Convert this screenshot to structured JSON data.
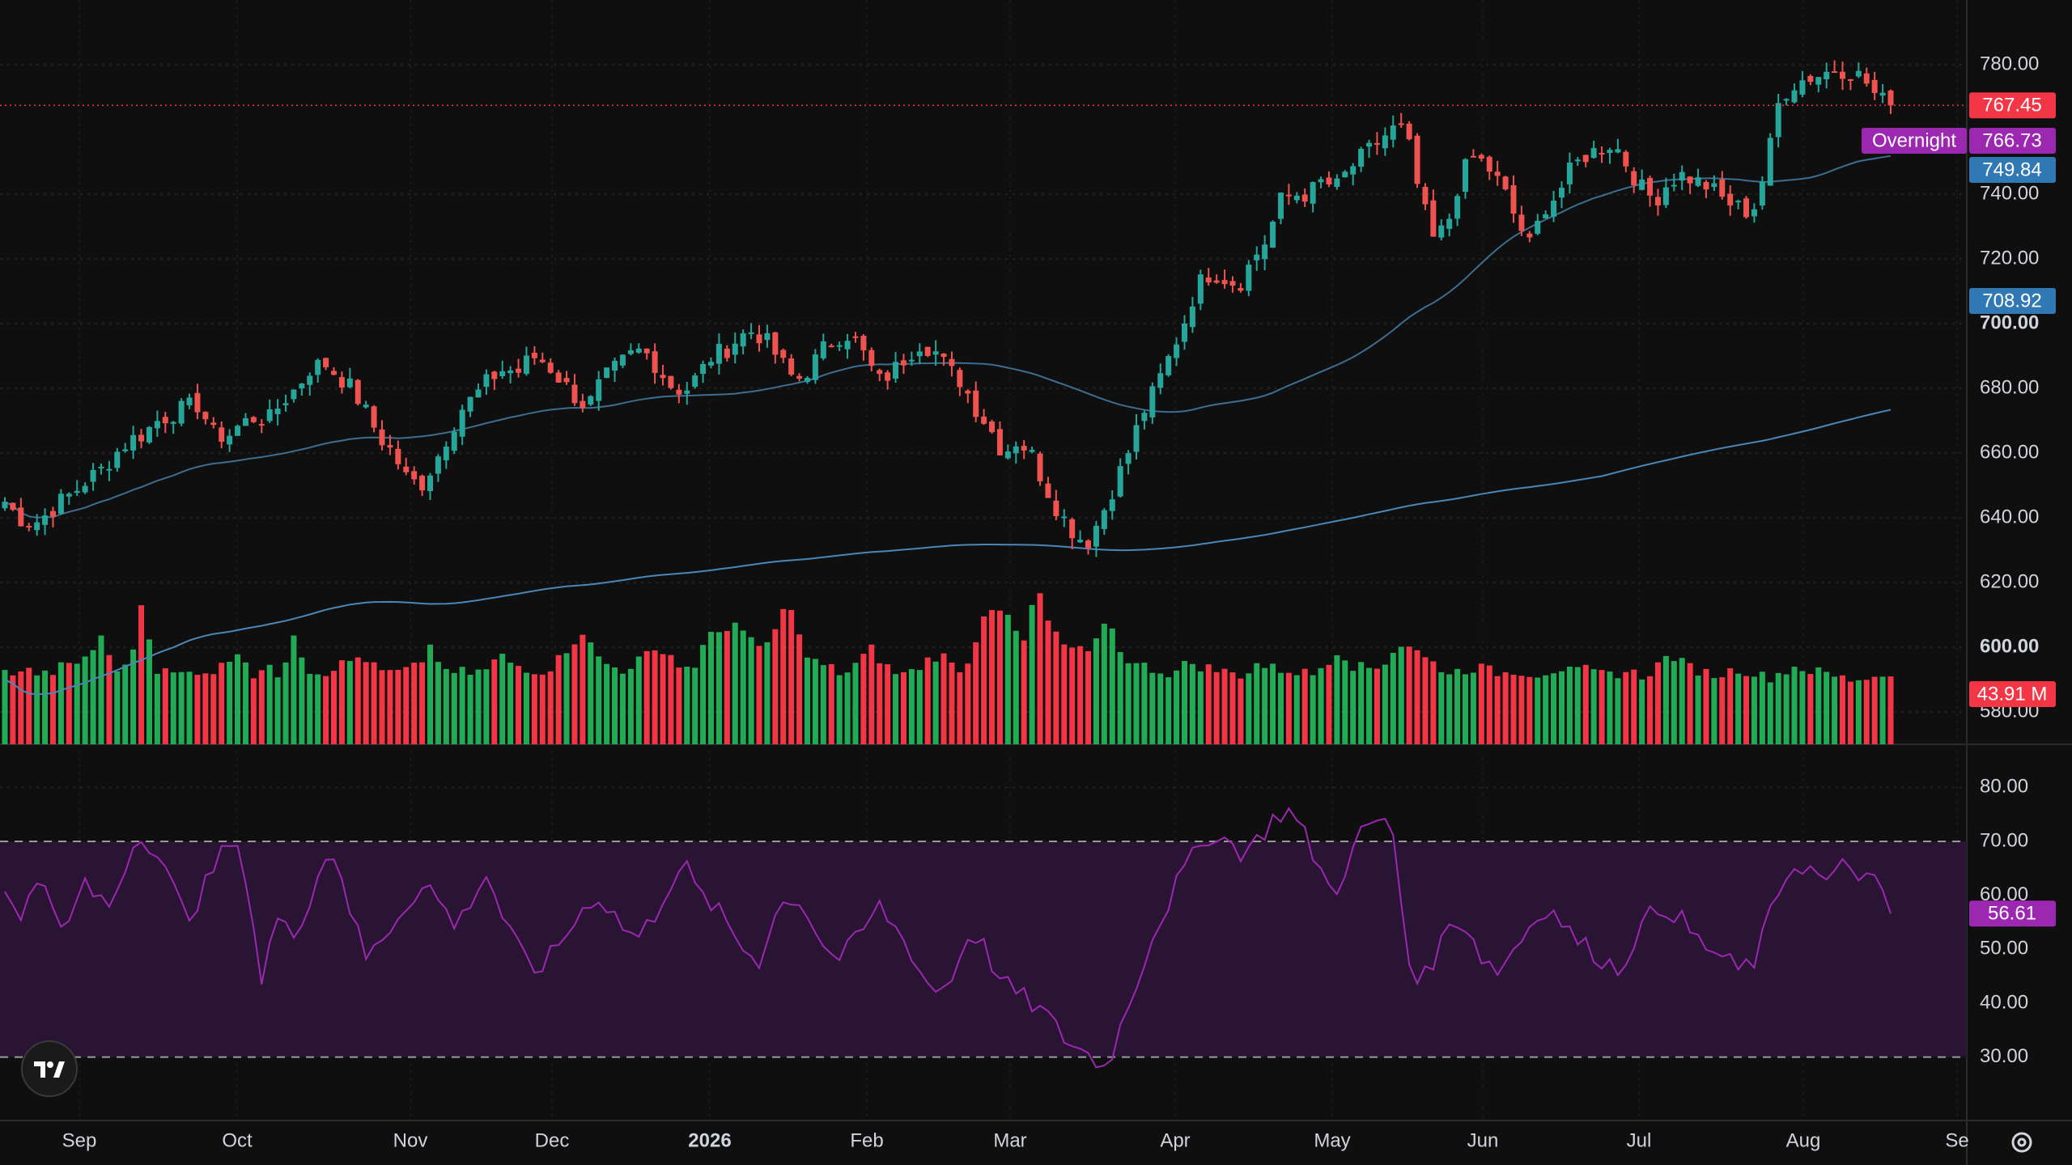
{
  "chart_data": [
    {
      "type": "candlestick",
      "title": "",
      "x_labels": [
        "Sep",
        "Oct",
        "Nov",
        "Dec",
        "2026",
        "Feb",
        "Mar",
        "Apr",
        "May",
        "Jun",
        "Jul",
        "Aug",
        "Se"
      ],
      "y_ticks": [
        "780.00",
        "740.00",
        "720.00",
        "700.00",
        "680.00",
        "660.00",
        "640.00",
        "620.00",
        "600.00",
        "580.00"
      ],
      "ylim": [
        570,
        790
      ],
      "grid": true,
      "price_path": [
        645,
        640,
        638,
        641,
        645,
        648,
        652,
        655,
        660,
        664,
        666,
        670,
        672,
        674,
        675,
        666,
        665,
        669,
        671,
        670,
        676,
        680,
        686,
        688,
        684,
        680,
        673,
        665,
        660,
        652,
        650,
        657,
        666,
        674,
        678,
        683,
        686,
        685,
        690,
        688,
        683,
        678,
        674,
        682,
        686,
        690,
        692,
        687,
        681,
        679,
        684,
        690,
        692,
        696,
        698,
        694,
        688,
        682,
        686,
        692,
        696,
        697,
        690,
        682,
        685,
        690,
        694,
        692,
        686,
        682,
        674,
        668,
        660,
        664,
        660,
        650,
        642,
        636,
        632,
        640,
        650,
        660,
        672,
        680,
        690,
        700,
        712,
        716,
        714,
        712,
        720,
        726,
        738,
        740,
        740,
        744,
        742,
        748,
        752,
        756,
        760,
        760,
        740,
        726,
        730,
        746,
        752,
        748,
        742,
        732,
        724,
        736,
        740,
        748,
        752,
        754,
        756,
        749,
        742,
        738,
        744,
        746,
        744,
        742,
        738,
        736,
        734,
        748,
        770,
        774,
        776,
        777,
        779,
        778,
        776,
        770,
        767.45
      ],
      "ma_fast_label": "749.84",
      "ma_slow_label": "708.92",
      "last_price": "767.45",
      "overnight_label": "Overnight",
      "overnight_price": "766.73",
      "colors": {
        "up": "#26a69a",
        "down": "#ef5350",
        "up_vol": "#22ab55",
        "down_vol": "#f23645",
        "ma_fast": "#2962ff",
        "ma": "#4a87b8",
        "last": "#f23645",
        "overnight": "#9c27b0",
        "ma_badge": "#3179b5"
      }
    },
    {
      "type": "bar",
      "title": "",
      "series_name": "Volume",
      "volume_label": "43.91 M",
      "volume_pattern": [
        88,
        92,
        90,
        85,
        95,
        98,
        110,
        130,
        96,
        92,
        180,
        92,
        88,
        86,
        92,
        90,
        98,
        120,
        86,
        94,
        84,
        140,
        92,
        88,
        96,
        102,
        110,
        92,
        88,
        90,
        96,
        124,
        86,
        90,
        88,
        92,
        110,
        98,
        94,
        90,
        100,
        122,
        140,
        108,
        96,
        92,
        104,
        112,
        120,
        96,
        94,
        130,
        140,
        152,
        128,
        118,
        140,
        182,
        112,
        100,
        94,
        86,
        102,
        118,
        96,
        86,
        90,
        104,
        112,
        94,
        98,
        160,
        176,
        150,
        124,
        196,
        140,
        122,
        116,
        110,
        160,
        118,
        98,
        96,
        90,
        88,
        102,
        96,
        92,
        88,
        86,
        100,
        94,
        92,
        90,
        86,
        102,
        118,
        96,
        94,
        96,
        120,
        124,
        108,
        98,
        88,
        92,
        96,
        90,
        88,
        92,
        86,
        90,
        94,
        88,
        92,
        86,
        88,
        90,
        84,
        96,
        112,
        98,
        92,
        86,
        88,
        94,
        88,
        82,
        88,
        96,
        92,
        88,
        84,
        80,
        82,
        84,
        90
      ]
    },
    {
      "type": "line",
      "title": "",
      "series_name": "RSI",
      "y_ticks": [
        "80.00",
        "70.00",
        "60.00",
        "50.00",
        "40.00",
        "30.00"
      ],
      "ylim": [
        25,
        85
      ],
      "upper_band": 70,
      "lower_band": 30,
      "rsi_label": "56.61",
      "rsi_path": [
        60,
        55,
        65,
        58,
        52,
        62,
        60,
        58,
        66,
        72,
        68,
        62,
        56,
        60,
        66,
        70,
        64,
        44,
        56,
        52,
        58,
        66,
        68,
        56,
        48,
        52,
        56,
        60,
        62,
        58,
        54,
        60,
        64,
        56,
        50,
        46,
        48,
        52,
        56,
        60,
        58,
        54,
        52,
        56,
        62,
        66,
        60,
        58,
        54,
        50,
        48,
        56,
        60,
        58,
        52,
        48,
        50,
        54,
        58,
        54,
        50,
        44,
        42,
        46,
        54,
        50,
        44,
        42,
        40,
        38,
        34,
        32,
        30,
        28,
        36,
        44,
        52,
        58,
        64,
        68,
        72,
        70,
        68,
        70,
        74,
        76,
        72,
        66,
        60,
        66,
        72,
        74,
        72,
        48,
        44,
        50,
        56,
        54,
        48,
        46,
        50,
        54,
        58,
        56,
        52,
        50,
        48,
        46,
        52,
        56,
        58,
        56,
        52,
        50,
        48,
        46,
        48,
        56,
        64,
        66,
        64,
        62,
        66,
        64,
        62,
        56.61
      ],
      "colors": {
        "line": "#9c27b0",
        "band": "#2a1433",
        "badge": "#9c27b0"
      }
    }
  ],
  "icons": {
    "logo": "tradingview-logo-icon",
    "settings": "gear-icon"
  }
}
